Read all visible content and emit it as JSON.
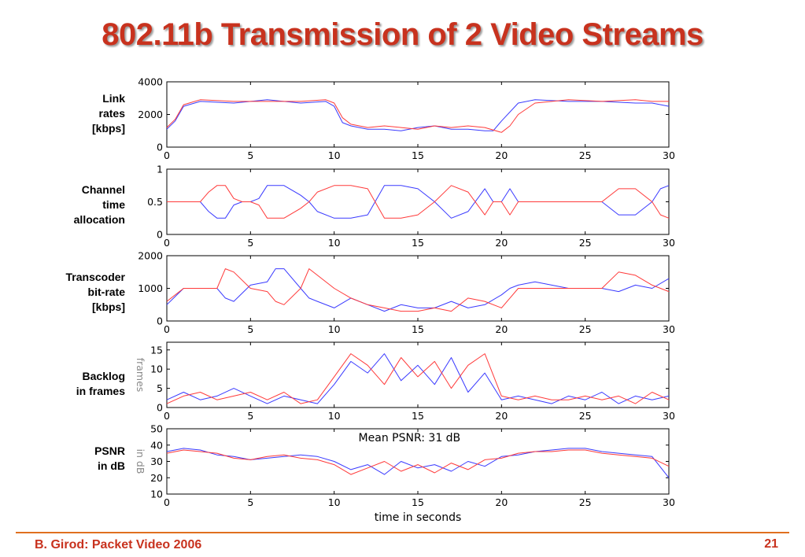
{
  "slide": {
    "title": "802.11b Transmission of 2 Video Streams",
    "footer_left": "B. Girod: Packet Video 2006",
    "page_number": "21"
  },
  "colors": {
    "title": "#c8321e",
    "footer_rule": "#e07020",
    "series_blue": "#3a3aff",
    "series_red": "#ff3a3a"
  },
  "chart_data": [
    {
      "type": "line",
      "row_label": "Link\nrates\n[kbps]",
      "ylim": [
        0,
        4000
      ],
      "yticks": [
        0,
        2000,
        4000
      ],
      "xlim": [
        0,
        30
      ],
      "xticks": [
        0,
        5,
        10,
        15,
        20,
        25,
        30
      ],
      "series": [
        {
          "color": "blue",
          "x": [
            0,
            0.5,
            1,
            2,
            4,
            6,
            8,
            9.5,
            10,
            10.5,
            11,
            12,
            13,
            14,
            15,
            16,
            17,
            18,
            19,
            19.5,
            20,
            21,
            22,
            24,
            26,
            28,
            29,
            30
          ],
          "y": [
            1100,
            1600,
            2500,
            2800,
            2700,
            2900,
            2700,
            2800,
            2500,
            1500,
            1300,
            1100,
            1100,
            1000,
            1200,
            1300,
            1100,
            1100,
            1000,
            1000,
            1600,
            2700,
            2900,
            2800,
            2800,
            2700,
            2700,
            2500
          ]
        },
        {
          "color": "red",
          "x": [
            0,
            0.5,
            1,
            2,
            4,
            6,
            8,
            9.5,
            10,
            10.5,
            11,
            12,
            13,
            14,
            15,
            16,
            17,
            18,
            19,
            20,
            20.5,
            21,
            22,
            24,
            26,
            28,
            29,
            30
          ],
          "y": [
            1200,
            1700,
            2600,
            2900,
            2800,
            2800,
            2800,
            2900,
            2700,
            1800,
            1400,
            1200,
            1300,
            1200,
            1100,
            1300,
            1200,
            1300,
            1200,
            900,
            1300,
            2000,
            2700,
            2900,
            2800,
            2900,
            2800,
            2800
          ]
        }
      ]
    },
    {
      "type": "line",
      "row_label": "Channel\ntime\nallocation",
      "ylim": [
        0,
        1
      ],
      "yticks": [
        0,
        0.5,
        1
      ],
      "xlim": [
        0,
        30
      ],
      "xticks": [
        0,
        5,
        10,
        15,
        20,
        25,
        30
      ],
      "series": [
        {
          "color": "blue",
          "x": [
            0,
            2,
            2.5,
            3,
            3.5,
            4,
            4.5,
            5,
            5.5,
            6,
            7,
            8,
            8.5,
            9,
            10,
            11,
            12,
            13,
            14,
            15,
            16,
            17,
            18,
            19,
            19.5,
            20,
            20.5,
            21,
            22,
            24,
            26,
            27,
            28,
            29,
            29.5,
            30
          ],
          "y": [
            0.5,
            0.5,
            0.35,
            0.25,
            0.25,
            0.45,
            0.5,
            0.5,
            0.55,
            0.75,
            0.75,
            0.6,
            0.5,
            0.35,
            0.25,
            0.25,
            0.3,
            0.75,
            0.75,
            0.7,
            0.5,
            0.25,
            0.35,
            0.7,
            0.5,
            0.5,
            0.7,
            0.5,
            0.5,
            0.5,
            0.5,
            0.3,
            0.3,
            0.5,
            0.7,
            0.75
          ]
        },
        {
          "color": "red",
          "x": [
            0,
            2,
            2.5,
            3,
            3.5,
            4,
            4.5,
            5,
            5.5,
            6,
            7,
            8,
            8.5,
            9,
            10,
            11,
            12,
            13,
            14,
            15,
            16,
            17,
            18,
            19,
            19.5,
            20,
            20.5,
            21,
            22,
            24,
            26,
            27,
            28,
            29,
            29.5,
            30
          ],
          "y": [
            0.5,
            0.5,
            0.65,
            0.75,
            0.75,
            0.55,
            0.5,
            0.5,
            0.45,
            0.25,
            0.25,
            0.4,
            0.5,
            0.65,
            0.75,
            0.75,
            0.7,
            0.25,
            0.25,
            0.3,
            0.5,
            0.75,
            0.65,
            0.3,
            0.5,
            0.5,
            0.3,
            0.5,
            0.5,
            0.5,
            0.5,
            0.7,
            0.7,
            0.5,
            0.3,
            0.25
          ]
        }
      ]
    },
    {
      "type": "line",
      "row_label": "Transcoder\nbit-rate\n[kbps]",
      "ylim": [
        0,
        2000
      ],
      "yticks": [
        0,
        1000,
        2000
      ],
      "xlim": [
        0,
        30
      ],
      "xticks": [
        0,
        5,
        10,
        15,
        20,
        25,
        30
      ],
      "series": [
        {
          "color": "blue",
          "x": [
            0,
            1,
            2,
            3,
            3.5,
            4,
            5,
            6,
            6.5,
            7,
            8,
            8.5,
            9,
            10,
            11,
            12,
            13,
            14,
            15,
            16,
            17,
            18,
            19,
            20,
            20.5,
            21,
            22,
            24,
            26,
            27,
            28,
            29,
            30
          ],
          "y": [
            500,
            1000,
            1000,
            1000,
            700,
            600,
            1100,
            1200,
            1600,
            1600,
            1000,
            700,
            600,
            400,
            700,
            500,
            300,
            500,
            400,
            400,
            600,
            400,
            500,
            800,
            1000,
            1100,
            1200,
            1000,
            1000,
            900,
            1100,
            1000,
            1300
          ]
        },
        {
          "color": "red",
          "x": [
            0,
            1,
            2,
            3,
            3.5,
            4,
            5,
            6,
            6.5,
            7,
            8,
            8.5,
            9,
            10,
            11,
            12,
            13,
            14,
            15,
            16,
            17,
            18,
            19,
            20,
            20.5,
            21,
            22,
            24,
            26,
            27,
            28,
            29,
            30
          ],
          "y": [
            600,
            1000,
            1000,
            1000,
            1600,
            1500,
            1000,
            900,
            600,
            500,
            1000,
            1600,
            1400,
            1000,
            700,
            500,
            400,
            300,
            300,
            400,
            300,
            700,
            600,
            400,
            700,
            1000,
            1000,
            1000,
            1000,
            1500,
            1400,
            1100,
            900
          ]
        }
      ]
    },
    {
      "type": "line",
      "row_label": "Backlog\nin frames",
      "ylabel": "frames",
      "ylim": [
        0,
        17
      ],
      "yticks": [
        0,
        5,
        10,
        15
      ],
      "xlim": [
        0,
        30
      ],
      "xticks": [
        0,
        5,
        10,
        15,
        20,
        25,
        30
      ],
      "series": [
        {
          "color": "blue",
          "x": [
            0,
            1,
            2,
            3,
            4,
            5,
            6,
            7,
            8,
            9,
            10,
            11,
            12,
            13,
            14,
            15,
            16,
            17,
            18,
            19,
            20,
            21,
            22,
            23,
            24,
            25,
            26,
            27,
            28,
            29,
            30
          ],
          "y": [
            2,
            4,
            2,
            3,
            5,
            3,
            1,
            3,
            2,
            1,
            6,
            12,
            9,
            14,
            7,
            11,
            6,
            13,
            4,
            9,
            2,
            3,
            2,
            1,
            3,
            2,
            4,
            1,
            3,
            2,
            3
          ]
        },
        {
          "color": "red",
          "x": [
            0,
            1,
            2,
            3,
            4,
            5,
            6,
            7,
            8,
            9,
            10,
            11,
            12,
            13,
            14,
            15,
            16,
            17,
            18,
            19,
            20,
            21,
            22,
            23,
            24,
            25,
            26,
            27,
            28,
            29,
            30
          ],
          "y": [
            1,
            3,
            4,
            2,
            3,
            4,
            2,
            4,
            1,
            2,
            8,
            14,
            11,
            6,
            13,
            8,
            12,
            5,
            11,
            14,
            3,
            2,
            3,
            2,
            2,
            3,
            2,
            3,
            1,
            4,
            2
          ]
        }
      ]
    },
    {
      "type": "line",
      "row_label": "PSNR\nin dB",
      "ylabel": "in dB",
      "annotation": "Mean PSNR:  31 dB",
      "xlabel": "time in seconds",
      "ylim": [
        10,
        50
      ],
      "yticks": [
        10,
        20,
        30,
        40,
        50
      ],
      "xlim": [
        0,
        30
      ],
      "xticks": [
        0,
        5,
        10,
        15,
        20,
        25,
        30
      ],
      "series": [
        {
          "color": "blue",
          "x": [
            0,
            1,
            2,
            3,
            4,
            5,
            6,
            7,
            8,
            9,
            10,
            11,
            12,
            13,
            14,
            15,
            16,
            17,
            18,
            19,
            20,
            21,
            22,
            23,
            24,
            25,
            26,
            27,
            28,
            29,
            30
          ],
          "y": [
            36,
            38,
            37,
            34,
            33,
            31,
            32,
            33,
            34,
            33,
            30,
            25,
            28,
            22,
            30,
            26,
            28,
            24,
            30,
            27,
            33,
            34,
            36,
            37,
            38,
            38,
            36,
            35,
            34,
            33,
            20
          ]
        },
        {
          "color": "red",
          "x": [
            0,
            1,
            2,
            3,
            4,
            5,
            6,
            7,
            8,
            9,
            10,
            11,
            12,
            13,
            14,
            15,
            16,
            17,
            18,
            19,
            20,
            21,
            22,
            23,
            24,
            25,
            26,
            27,
            28,
            29,
            30
          ],
          "y": [
            35,
            37,
            36,
            35,
            32,
            31,
            33,
            34,
            32,
            31,
            28,
            22,
            26,
            30,
            24,
            28,
            23,
            29,
            25,
            31,
            32,
            35,
            36,
            36,
            37,
            37,
            35,
            34,
            33,
            32,
            27
          ]
        }
      ]
    }
  ]
}
